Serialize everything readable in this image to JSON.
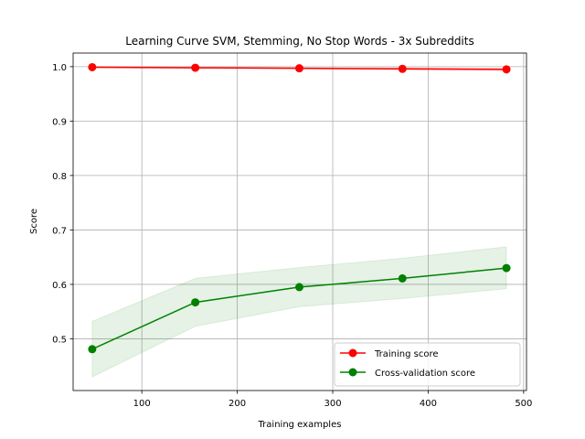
{
  "chart_data": {
    "type": "line",
    "title": "Learning Curve SVM, Stemming, No Stop Words - 3x Subreddits",
    "xlabel": "Training examples",
    "ylabel": "Score",
    "xlim": [
      28,
      503
    ],
    "ylim": [
      0.405,
      1.025
    ],
    "xticks": [
      100,
      200,
      300,
      400,
      500
    ],
    "yticks": [
      0.5,
      0.6,
      0.7,
      0.8,
      0.9,
      1.0
    ],
    "xtick_labels": [
      "100",
      "200",
      "300",
      "400",
      "500"
    ],
    "ytick_labels": [
      "0.5",
      "0.6",
      "0.7",
      "0.8",
      "0.9",
      "1.0"
    ],
    "grid": true,
    "legend_position": "lower-right",
    "x": [
      48,
      156,
      265,
      373,
      482
    ],
    "series": [
      {
        "name": "Training score",
        "color": "#ff0000",
        "values": [
          0.999,
          0.998,
          0.997,
          0.996,
          0.995
        ],
        "band_lower": [
          0.998,
          0.997,
          0.996,
          0.994,
          0.993
        ],
        "band_upper": [
          1.0,
          0.999,
          0.998,
          0.998,
          0.997
        ]
      },
      {
        "name": "Cross-validation score",
        "color": "#008000",
        "values": [
          0.481,
          0.567,
          0.595,
          0.611,
          0.63
        ],
        "band_lower": [
          0.43,
          0.523,
          0.559,
          0.574,
          0.592
        ],
        "band_upper": [
          0.532,
          0.611,
          0.631,
          0.648,
          0.669
        ]
      }
    ]
  }
}
